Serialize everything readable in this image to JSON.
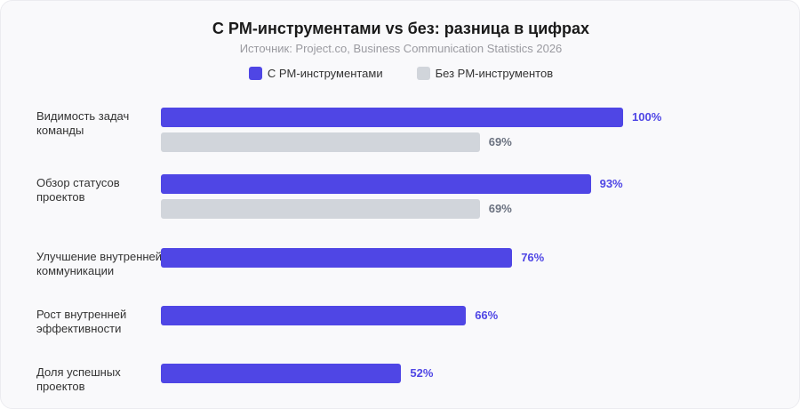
{
  "chart_data": {
    "type": "bar",
    "orientation": "horizontal",
    "title": "С PM-инструментами vs без: разница в цифрах",
    "subtitle": "Источник: Project.co, Business Communication Statistics 2026",
    "xlim": [
      0,
      100
    ],
    "grid": false,
    "legend_placement": "top-center",
    "categories": [
      "Видимость задач команды",
      "Обзор статусов проектов",
      "Улучшение внутренней коммуникации",
      "Рост внутренней эффективности",
      "Доля успешных проектов"
    ],
    "series": [
      {
        "name": "С PM-инструментами",
        "color": "#4F46E5",
        "values": [
          100,
          93,
          76,
          66,
          52
        ],
        "labels": [
          "100%",
          "93%",
          "76%",
          "66%",
          "52%"
        ]
      },
      {
        "name": "Без PM-инструментов",
        "color": "#D1D5DB",
        "values": [
          69,
          69,
          null,
          null,
          null
        ],
        "labels": [
          "69%",
          "69%",
          null,
          null,
          null
        ]
      }
    ],
    "value_label_colors": [
      "#4F46E5",
      "#6B7280"
    ]
  }
}
